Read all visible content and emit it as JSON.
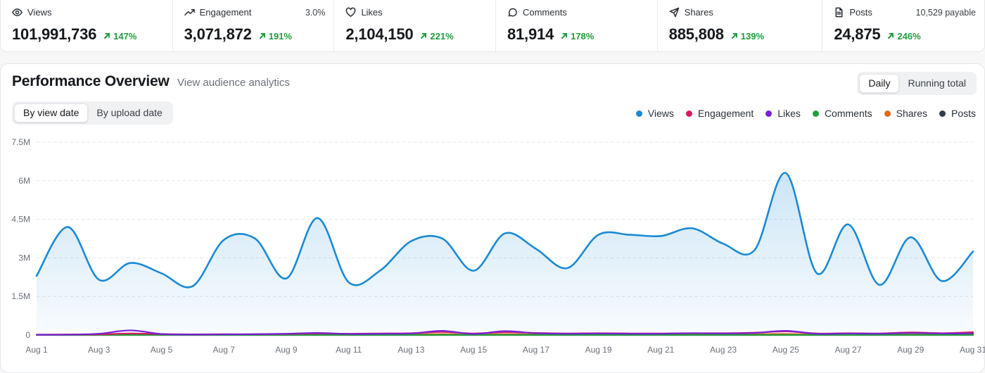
{
  "stats": [
    {
      "icon": "eye-icon",
      "label": "Views",
      "value": "101,991,736",
      "delta": "147%",
      "extra": ""
    },
    {
      "icon": "trending-up-icon",
      "label": "Engagement",
      "value": "3,071,872",
      "delta": "191%",
      "extra": "3.0%"
    },
    {
      "icon": "heart-icon",
      "label": "Likes",
      "value": "2,104,150",
      "delta": "221%",
      "extra": ""
    },
    {
      "icon": "comment-icon",
      "label": "Comments",
      "value": "81,914",
      "delta": "178%",
      "extra": ""
    },
    {
      "icon": "send-icon",
      "label": "Shares",
      "value": "885,808",
      "delta": "139%",
      "extra": ""
    },
    {
      "icon": "document-icon",
      "label": "Posts",
      "value": "24,875",
      "delta": "246%",
      "extra": "10,529 payable"
    }
  ],
  "panel": {
    "title": "Performance Overview",
    "link": "View audience analytics",
    "period_tabs": [
      {
        "label": "Daily",
        "active": true
      },
      {
        "label": "Running total",
        "active": false
      }
    ],
    "date_tabs": [
      {
        "label": "By view date",
        "active": true
      },
      {
        "label": "By upload date",
        "active": false
      }
    ]
  },
  "colors": {
    "views": "#1a8ad4",
    "engagement": "#d81b60",
    "likes": "#7b1fd8",
    "comments": "#1f9d3a",
    "shares": "#e0671a",
    "posts": "#2f3a4a",
    "positive": "#1f9d3a"
  },
  "chart_data": {
    "type": "line",
    "title": "",
    "xlabel": "",
    "ylabel": "",
    "x": [
      "Aug 1",
      "Aug 2",
      "Aug 3",
      "Aug 4",
      "Aug 5",
      "Aug 6",
      "Aug 7",
      "Aug 8",
      "Aug 9",
      "Aug 10",
      "Aug 11",
      "Aug 12",
      "Aug 13",
      "Aug 14",
      "Aug 15",
      "Aug 16",
      "Aug 17",
      "Aug 18",
      "Aug 19",
      "Aug 20",
      "Aug 21",
      "Aug 22",
      "Aug 23",
      "Aug 24",
      "Aug 25",
      "Aug 26",
      "Aug 27",
      "Aug 28",
      "Aug 29",
      "Aug 30",
      "Aug 31"
    ],
    "x_tick_labels": [
      "Aug 1",
      "Aug 3",
      "Aug 5",
      "Aug 7",
      "Aug 9",
      "Aug 11",
      "Aug 13",
      "Aug 15",
      "Aug 17",
      "Aug 19",
      "Aug 21",
      "Aug 23",
      "Aug 25",
      "Aug 27",
      "Aug 29",
      "Aug 31"
    ],
    "y_tick_labels": [
      "0",
      "1.5M",
      "3M",
      "4.5M",
      "6M",
      "7.5M"
    ],
    "ylim": [
      0,
      7500000
    ],
    "grid": true,
    "legend_position": "top-right",
    "series": [
      {
        "name": "Views",
        "color_key": "views",
        "fill": true,
        "values": [
          2300000,
          4200000,
          2150000,
          2800000,
          2400000,
          1900000,
          3700000,
          3750000,
          2200000,
          4550000,
          2050000,
          2500000,
          3650000,
          3750000,
          2500000,
          3950000,
          3350000,
          2600000,
          3900000,
          3900000,
          3850000,
          4150000,
          3550000,
          3300000,
          6300000,
          2400000,
          4300000,
          1950000,
          3800000,
          2100000,
          3250000
        ]
      },
      {
        "name": "Engagement",
        "color_key": "engagement",
        "fill": false,
        "values": [
          15000,
          20000,
          25000,
          60000,
          35000,
          25000,
          30000,
          30000,
          40000,
          60000,
          50000,
          60000,
          70000,
          120000,
          60000,
          110000,
          80000,
          60000,
          70000,
          60000,
          60000,
          70000,
          70000,
          90000,
          140000,
          60000,
          70000,
          60000,
          100000,
          70000,
          110000
        ]
      },
      {
        "name": "Likes",
        "color_key": "likes",
        "fill": false,
        "values": [
          10000,
          15000,
          50000,
          180000,
          40000,
          20000,
          25000,
          30000,
          50000,
          80000,
          40000,
          50000,
          60000,
          160000,
          40000,
          150000,
          70000,
          50000,
          60000,
          50000,
          50000,
          70000,
          60000,
          80000,
          160000,
          50000,
          60000,
          50000,
          80000,
          60000,
          60000
        ]
      },
      {
        "name": "Comments",
        "color_key": "comments",
        "fill": false,
        "values": [
          2000,
          2500,
          3000,
          3000,
          2500,
          2500,
          3000,
          3000,
          2500,
          3000,
          2500,
          2500,
          3000,
          3000,
          2500,
          3000,
          2500,
          2500,
          3000,
          3000,
          3000,
          3000,
          2500,
          3000,
          3500,
          2500,
          3000,
          2500,
          3000,
          2500,
          3000
        ]
      },
      {
        "name": "Shares",
        "color_key": "shares",
        "fill": false,
        "values": [
          5000,
          8000,
          10000,
          20000,
          12000,
          10000,
          15000,
          15000,
          15000,
          25000,
          20000,
          20000,
          25000,
          35000,
          20000,
          30000,
          25000,
          20000,
          25000,
          20000,
          25000,
          25000,
          25000,
          30000,
          40000,
          25000,
          30000,
          25000,
          60000,
          30000,
          50000
        ]
      },
      {
        "name": "Posts",
        "color_key": "posts",
        "fill": false,
        "values": [
          500,
          600,
          700,
          800,
          700,
          700,
          800,
          800,
          700,
          900,
          800,
          800,
          900,
          900,
          800,
          900,
          800,
          800,
          900,
          800,
          800,
          900,
          800,
          900,
          1000,
          800,
          900,
          800,
          900,
          800,
          900
        ]
      }
    ]
  }
}
